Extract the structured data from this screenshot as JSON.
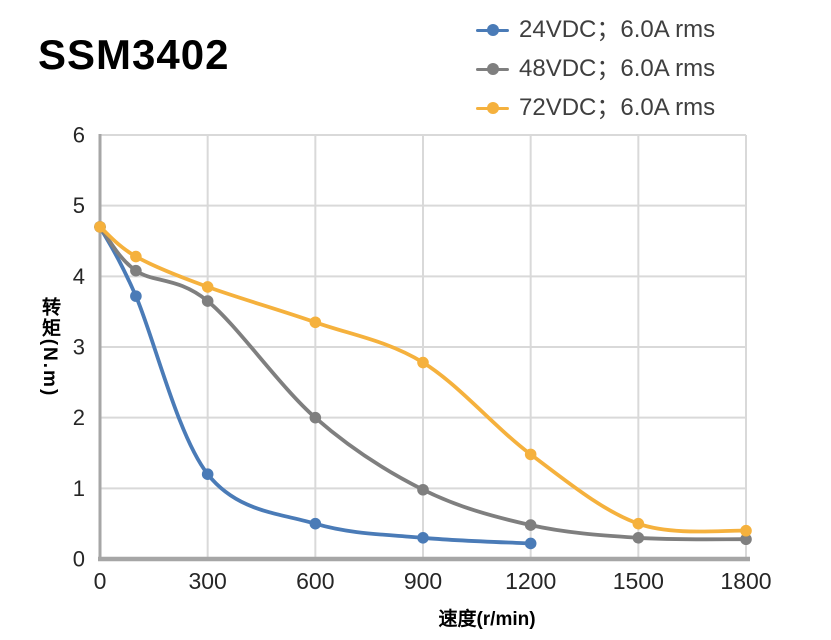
{
  "figure": {
    "background": "#ffffff"
  },
  "chart_data": {
    "type": "line",
    "title": "SSM3402",
    "xlabel": "速度(r/min)",
    "ylabel": "转矩(N.m)",
    "xlim": [
      0,
      1800
    ],
    "ylim": [
      0,
      6
    ],
    "x_ticks": [
      0,
      300,
      600,
      900,
      1200,
      1500,
      1800
    ],
    "y_ticks": [
      0,
      1,
      2,
      3,
      4,
      5,
      6
    ],
    "grid": true,
    "legend_position": "top-right",
    "grid_color": "#d9d9d9",
    "axis_color": "#a6a6a6",
    "tick_label_color": "#262626",
    "legend_text_color": "#3f3f3f",
    "series": [
      {
        "name": "24VDC；6.0A rms",
        "color": "#4a7bb7",
        "x": [
          0,
          100,
          300,
          600,
          900,
          1200
        ],
        "y": [
          4.7,
          3.72,
          1.2,
          0.5,
          0.3,
          0.22
        ]
      },
      {
        "name": "48VDC；6.0A rms",
        "color": "#7f7f7f",
        "x": [
          0,
          100,
          300,
          600,
          900,
          1200,
          1500,
          1800
        ],
        "y": [
          4.7,
          4.08,
          3.65,
          2.0,
          0.98,
          0.48,
          0.3,
          0.28
        ]
      },
      {
        "name": "72VDC；6.0A rms",
        "color": "#f5b13d",
        "x": [
          0,
          100,
          300,
          600,
          900,
          1200,
          1500,
          1800
        ],
        "y": [
          4.7,
          4.28,
          3.85,
          3.35,
          2.78,
          1.48,
          0.5,
          0.4
        ]
      }
    ]
  }
}
